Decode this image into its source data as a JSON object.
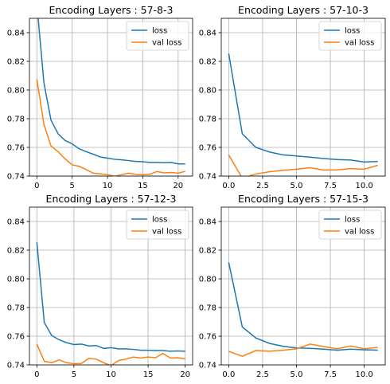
{
  "colors": {
    "loss": "#1f77b4",
    "val_loss": "#ff7f0e",
    "grid": "#b0b0b0",
    "axis": "#000000"
  },
  "chart_data": [
    {
      "type": "line",
      "title": "Encoding Layers : 57-8-3",
      "xlabel": "",
      "ylabel": "",
      "xlim": [
        -1.05,
        22.05
      ],
      "ylim": [
        0.74,
        0.85
      ],
      "xticks": [
        0,
        5,
        10,
        15,
        20
      ],
      "xtick_labels": [
        "0",
        "5",
        "10",
        "15",
        "20"
      ],
      "yticks": [
        0.74,
        0.76,
        0.78,
        0.8,
        0.82,
        0.84
      ],
      "ytick_labels": [
        "0.74",
        "0.76",
        "0.78",
        "0.80",
        "0.82",
        "0.84"
      ],
      "grid": true,
      "legend_position": "top-right",
      "x": [
        0,
        1,
        2,
        3,
        4,
        5,
        6,
        7,
        8,
        9,
        10,
        11,
        12,
        13,
        14,
        15,
        16,
        17,
        18,
        19,
        20,
        21
      ],
      "series": [
        {
          "name": "loss",
          "color_key": "loss",
          "values": [
            0.86,
            0.805,
            0.779,
            0.7695,
            0.7648,
            0.7625,
            0.759,
            0.757,
            0.7552,
            0.7533,
            0.7525,
            0.7517,
            0.7513,
            0.7508,
            0.7502,
            0.75,
            0.7495,
            0.7495,
            0.7493,
            0.7495,
            0.7485,
            0.7485
          ]
        },
        {
          "name": "val loss",
          "color_key": "val_loss",
          "values": [
            0.8075,
            0.776,
            0.761,
            0.757,
            0.752,
            0.7478,
            0.7468,
            0.7445,
            0.742,
            0.7415,
            0.741,
            0.7398,
            0.741,
            0.742,
            0.7412,
            0.741,
            0.7413,
            0.7432,
            0.7422,
            0.7425,
            0.742,
            0.7433
          ]
        }
      ]
    },
    {
      "type": "line",
      "title": "Encoding Layers : 57-10-3",
      "xlabel": "",
      "ylabel": "",
      "xlim": [
        -0.55,
        11.55
      ],
      "ylim": [
        0.74,
        0.85
      ],
      "xticks": [
        0,
        2.5,
        5,
        7.5,
        10
      ],
      "xtick_labels": [
        "0.0",
        "2.5",
        "5.0",
        "7.5",
        "10.0"
      ],
      "yticks": [
        0.74,
        0.76,
        0.78,
        0.8,
        0.82,
        0.84
      ],
      "ytick_labels": [
        "0.74",
        "0.76",
        "0.78",
        "0.80",
        "0.82",
        "0.84"
      ],
      "grid": true,
      "legend_position": "top-right",
      "x": [
        0,
        1,
        2,
        3,
        4,
        5,
        6,
        7,
        8,
        9,
        10,
        11
      ],
      "series": [
        {
          "name": "loss",
          "color_key": "loss",
          "values": [
            0.8255,
            0.7695,
            0.76,
            0.7568,
            0.7548,
            0.754,
            0.7532,
            0.7522,
            0.7515,
            0.7512,
            0.7498,
            0.7502
          ]
        },
        {
          "name": "val loss",
          "color_key": "val_loss",
          "values": [
            0.7548,
            0.7385,
            0.7415,
            0.743,
            0.744,
            0.7448,
            0.7458,
            0.7442,
            0.7443,
            0.7452,
            0.7448,
            0.7475
          ]
        }
      ]
    },
    {
      "type": "line",
      "title": "Encoding Layers : 57-12-3",
      "xlabel": "",
      "ylabel": "",
      "xlim": [
        -1.0,
        21.0
      ],
      "ylim": [
        0.74,
        0.85
      ],
      "xticks": [
        0,
        5,
        10,
        15,
        20
      ],
      "xtick_labels": [
        "0",
        "5",
        "10",
        "15",
        "20"
      ],
      "yticks": [
        0.74,
        0.76,
        0.78,
        0.8,
        0.82,
        0.84
      ],
      "ytick_labels": [
        "0.74",
        "0.76",
        "0.78",
        "0.80",
        "0.82",
        "0.84"
      ],
      "grid": true,
      "legend_position": "top-right",
      "x": [
        0,
        1,
        2,
        3,
        4,
        5,
        6,
        7,
        8,
        9,
        10,
        11,
        12,
        13,
        14,
        15,
        16,
        17,
        18,
        19,
        20
      ],
      "series": [
        {
          "name": "loss",
          "color_key": "loss",
          "values": [
            0.8255,
            0.7695,
            0.7605,
            0.7575,
            0.7555,
            0.7542,
            0.7545,
            0.7532,
            0.7535,
            0.7515,
            0.752,
            0.7512,
            0.7512,
            0.7508,
            0.7502,
            0.7502,
            0.75,
            0.75,
            0.7495,
            0.7497,
            0.7495
          ]
        },
        {
          "name": "val loss",
          "color_key": "val_loss",
          "values": [
            0.7545,
            0.7425,
            0.7415,
            0.7435,
            0.7415,
            0.7408,
            0.741,
            0.7445,
            0.744,
            0.7415,
            0.7395,
            0.743,
            0.744,
            0.7455,
            0.7448,
            0.7455,
            0.745,
            0.748,
            0.7448,
            0.745,
            0.7442
          ]
        }
      ]
    },
    {
      "type": "line",
      "title": "Encoding Layers : 57-15-3",
      "xlabel": "",
      "ylabel": "",
      "xlim": [
        -0.55,
        11.55
      ],
      "ylim": [
        0.74,
        0.85
      ],
      "xticks": [
        0,
        2.5,
        5,
        7.5,
        10
      ],
      "xtick_labels": [
        "0.0",
        "2.5",
        "5.0",
        "7.5",
        "10.0"
      ],
      "yticks": [
        0.74,
        0.76,
        0.78,
        0.8,
        0.82,
        0.84
      ],
      "ytick_labels": [
        "0.74",
        "0.76",
        "0.78",
        "0.80",
        "0.82",
        "0.84"
      ],
      "grid": true,
      "legend_position": "top-right",
      "x": [
        0,
        1,
        2,
        3,
        4,
        5,
        6,
        7,
        8,
        9,
        10,
        11
      ],
      "series": [
        {
          "name": "loss",
          "color_key": "loss",
          "values": [
            0.8115,
            0.7665,
            0.7588,
            0.755,
            0.753,
            0.7518,
            0.7515,
            0.751,
            0.7502,
            0.751,
            0.7505,
            0.7503
          ]
        },
        {
          "name": "val loss",
          "color_key": "val_loss",
          "values": [
            0.7495,
            0.746,
            0.75,
            0.7495,
            0.7502,
            0.7512,
            0.7545,
            0.7528,
            0.7512,
            0.7532,
            0.7512,
            0.7522
          ]
        }
      ]
    }
  ]
}
